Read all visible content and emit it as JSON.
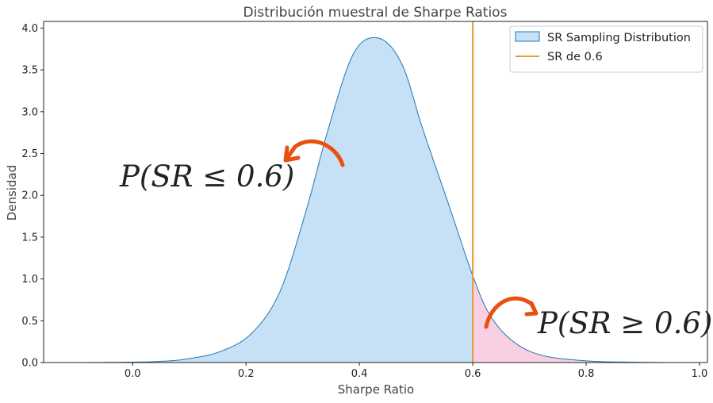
{
  "chart_data": {
    "type": "area",
    "title": "Distribución muestral de Sharpe Ratios",
    "xlabel": "Sharpe Ratio",
    "ylabel": "Densidad",
    "xlim": [
      -0.157,
      1.014
    ],
    "ylim": [
      0,
      4.08
    ],
    "xticks": [
      0.0,
      0.2,
      0.4,
      0.6,
      0.8,
      1.0
    ],
    "xtick_labels": [
      "0.0",
      "0.2",
      "0.4",
      "0.6",
      "0.8",
      "1.0"
    ],
    "yticks": [
      0,
      0.5,
      1,
      1.5,
      2,
      2.5,
      3,
      3.5,
      4
    ],
    "ytick_labels": [
      "0.0",
      "0.5",
      "1.0",
      "1.5",
      "2.0",
      "2.5",
      "3.0",
      "3.5",
      "4.0"
    ],
    "grid": false,
    "legend_position": "top-right",
    "series": [
      {
        "name": "SR Sampling Distribution",
        "kind": "kde",
        "color": "#1f77b4",
        "fill": "#c6e0f5",
        "x": [
          -0.09,
          0.0,
          0.05,
          0.093,
          0.154,
          0.21,
          0.26,
          0.307,
          0.345,
          0.39,
          0.434,
          0.475,
          0.512,
          0.56,
          0.6,
          0.63,
          0.67,
          0.72,
          0.8,
          0.9,
          0.97
        ],
        "y": [
          0.0,
          0.005,
          0.015,
          0.04,
          0.13,
          0.35,
          0.85,
          1.84,
          2.79,
          3.7,
          3.88,
          3.57,
          2.79,
          1.84,
          1.04,
          0.57,
          0.26,
          0.09,
          0.02,
          0.003,
          0.0
        ]
      },
      {
        "name": "SR de 0.6",
        "kind": "vline",
        "color": "#e69a3a",
        "x": 0.6
      }
    ],
    "shaded_region": {
      "from": 0.6,
      "color": "#f9cfe2"
    },
    "annotations": [
      {
        "text": "P(SR ≤ 0.6)",
        "x": -0.01,
        "y": 2.1,
        "arrow_color": "#e8500f"
      },
      {
        "text": "P(SR ≥ 0.6)",
        "x": 0.725,
        "y": 0.35,
        "arrow_color": "#e8500f"
      }
    ]
  }
}
